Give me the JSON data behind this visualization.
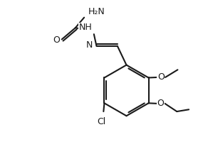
{
  "bg": "#ffffff",
  "lc": "#1a1a1a",
  "lw": 1.5,
  "fs": 9.0,
  "dbo": 0.1,
  "xlim": [
    0,
    10
  ],
  "ylim": [
    0,
    8
  ]
}
